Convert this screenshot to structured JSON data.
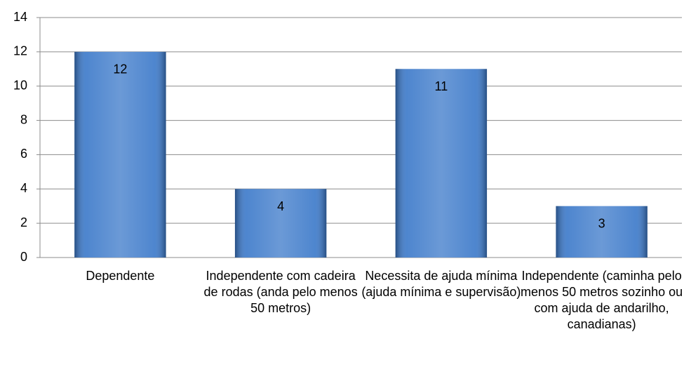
{
  "chart_data": {
    "type": "bar",
    "categories": [
      "Dependente",
      "Independente com cadeira de rodas (anda pelo menos 50 metros)",
      "Necessita de ajuda mínima (ajuda mínima e supervisão)",
      "Independente (caminha pelo menos 50 metros sozinho ou com ajuda de andarilho, canadianas)"
    ],
    "values": [
      12,
      4,
      11,
      3
    ],
    "color": "#3a78c9",
    "ylim": [
      0,
      14
    ],
    "yticks": [
      0,
      2,
      4,
      6,
      8,
      10,
      12,
      14
    ],
    "grid": true
  }
}
